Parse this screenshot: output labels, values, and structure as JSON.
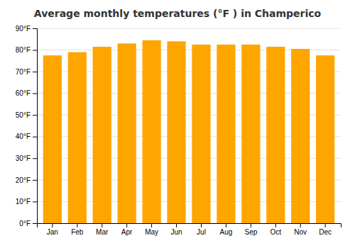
{
  "chart_data": {
    "type": "bar",
    "title": "Average monthly temperatures (°F ) in Champerico",
    "categories": [
      "Jan",
      "Feb",
      "Mar",
      "Apr",
      "May",
      "Jun",
      "Jul",
      "Aug",
      "Sep",
      "Oct",
      "Nov",
      "Dec"
    ],
    "values": [
      77.5,
      79.0,
      81.5,
      83.0,
      84.5,
      84.0,
      82.5,
      82.5,
      82.5,
      81.5,
      80.5,
      77.5
    ],
    "color": "#FFA500",
    "ylim": [
      0,
      90
    ],
    "yticks": [
      {
        "value": 0,
        "label": "0°F"
      },
      {
        "value": 10,
        "label": "10°F"
      },
      {
        "value": 20,
        "label": "20°F"
      },
      {
        "value": 30,
        "label": "30°F"
      },
      {
        "value": 40,
        "label": "40°F"
      },
      {
        "value": 50,
        "label": "50°F"
      },
      {
        "value": 60,
        "label": "60°F"
      },
      {
        "value": 70,
        "label": "70°F"
      },
      {
        "value": 80,
        "label": "80°F"
      },
      {
        "value": 90,
        "label": "90°F"
      }
    ],
    "grid": true
  }
}
